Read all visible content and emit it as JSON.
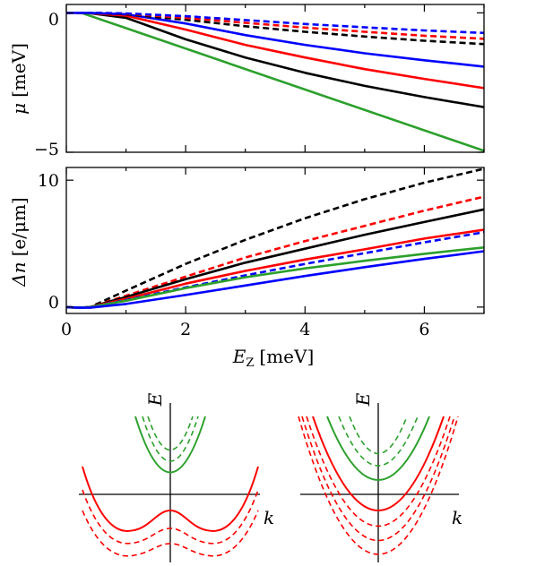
{
  "chart_data": [
    {
      "type": "line",
      "ylabel_symbol": "μ",
      "ylabel_unit": "[meV]",
      "xlim": [
        0,
        7
      ],
      "ylim": [
        -5,
        0.3
      ],
      "yticks": [
        0,
        -5
      ],
      "ytick_labels": [
        "0",
        "−5"
      ],
      "series": [
        {
          "color": "#2ca02c",
          "dash": false,
          "x": [
            0.25,
            7
          ],
          "y": [
            0,
            -4.95
          ]
        },
        {
          "color": "#000000",
          "dash": false,
          "x": [
            0,
            0.35,
            1,
            2,
            3,
            4,
            5,
            6,
            7
          ],
          "y": [
            0,
            0,
            -0.18,
            -0.95,
            -1.6,
            -2.15,
            -2.62,
            -3.02,
            -3.38
          ]
        },
        {
          "color": "#ff0000",
          "dash": false,
          "x": [
            0,
            0.35,
            1,
            2,
            3,
            4,
            5,
            6,
            7
          ],
          "y": [
            0,
            0,
            -0.1,
            -0.6,
            -1.15,
            -1.6,
            -2.02,
            -2.37,
            -2.7
          ]
        },
        {
          "color": "#0000ff",
          "dash": false,
          "x": [
            0,
            0.35,
            1,
            2,
            3,
            4,
            5,
            6,
            7
          ],
          "y": [
            0,
            0,
            -0.05,
            -0.38,
            -0.8,
            -1.15,
            -1.45,
            -1.7,
            -1.93
          ]
        },
        {
          "color": "#000000",
          "dash": true,
          "x": [
            0,
            0.5,
            1,
            2,
            3,
            4,
            5,
            6,
            7
          ],
          "y": [
            0,
            0,
            -0.05,
            -0.25,
            -0.48,
            -0.68,
            -0.85,
            -1.0,
            -1.12
          ]
        },
        {
          "color": "#ff0000",
          "dash": true,
          "x": [
            0,
            0.5,
            1,
            2,
            3,
            4,
            5,
            6,
            7
          ],
          "y": [
            0,
            0,
            -0.03,
            -0.18,
            -0.36,
            -0.53,
            -0.68,
            -0.82,
            -0.93
          ]
        },
        {
          "color": "#0000ff",
          "dash": true,
          "x": [
            0,
            0.5,
            1,
            2,
            3,
            4,
            5,
            6,
            7
          ],
          "y": [
            0,
            0,
            -0.02,
            -0.12,
            -0.26,
            -0.4,
            -0.52,
            -0.63,
            -0.72
          ]
        }
      ]
    },
    {
      "type": "line",
      "ylabel_symbol": "Δn",
      "ylabel_unit": "[e/μm]",
      "xlabel_symbol": "E",
      "xlabel_sub": "Z",
      "xlabel_unit": "[meV]",
      "xlim": [
        0,
        7
      ],
      "ylim": [
        -0.5,
        11
      ],
      "xticks": [
        0,
        2,
        4,
        6
      ],
      "xtick_labels": [
        "0",
        "2",
        "4",
        "6"
      ],
      "yticks": [
        0,
        10
      ],
      "ytick_labels": [
        "0",
        "10"
      ],
      "series": [
        {
          "color": "#000000",
          "dash": true,
          "x": [
            0,
            0.2,
            0.4,
            1,
            2,
            3,
            4,
            5,
            6,
            7
          ],
          "y": [
            0,
            -0.05,
            0,
            1.3,
            3.4,
            5.3,
            7.0,
            8.5,
            9.8,
            10.9
          ]
        },
        {
          "color": "#ff0000",
          "dash": true,
          "x": [
            0,
            0.2,
            0.4,
            1,
            2,
            3,
            4,
            5,
            6,
            7
          ],
          "y": [
            0,
            -0.05,
            0,
            0.9,
            2.4,
            3.9,
            5.2,
            6.4,
            7.6,
            8.7
          ]
        },
        {
          "color": "#000000",
          "dash": false,
          "x": [
            0,
            0.2,
            0.4,
            1,
            2,
            3,
            4,
            5,
            6,
            7
          ],
          "y": [
            0,
            -0.05,
            0,
            0.8,
            2.2,
            3.5,
            4.6,
            5.7,
            6.7,
            7.7
          ]
        },
        {
          "color": "#ff0000",
          "dash": false,
          "x": [
            0,
            0.2,
            0.4,
            1,
            2,
            3,
            4,
            5,
            6,
            7
          ],
          "y": [
            0,
            -0.05,
            0,
            0.65,
            1.85,
            2.85,
            3.75,
            4.55,
            5.4,
            6.1
          ]
        },
        {
          "color": "#0000ff",
          "dash": true,
          "x": [
            0,
            0.2,
            0.4,
            1,
            2,
            3,
            4,
            5,
            6,
            7
          ],
          "y": [
            0,
            -0.05,
            0,
            0.55,
            1.55,
            2.5,
            3.4,
            4.25,
            5.1,
            5.9
          ]
        },
        {
          "color": "#2ca02c",
          "dash": false,
          "x": [
            0,
            0.2,
            0.4,
            1,
            2,
            3,
            4,
            5,
            6,
            7
          ],
          "y": [
            0,
            -0.05,
            0,
            0.5,
            1.5,
            2.35,
            3.05,
            3.65,
            4.2,
            4.7
          ]
        },
        {
          "color": "#0000ff",
          "dash": false,
          "x": [
            0,
            0.2,
            0.4,
            1,
            2,
            3,
            4,
            5,
            6,
            7
          ],
          "y": [
            0,
            -0.05,
            -0.05,
            0.25,
            0.95,
            1.7,
            2.45,
            3.15,
            3.8,
            4.4
          ]
        }
      ]
    }
  ],
  "insets": {
    "left": {
      "e_label": "E",
      "k_label": "k"
    },
    "right": {
      "e_label": "E",
      "k_label": "k"
    }
  },
  "colors": {
    "green": "#2ca02c",
    "red": "#ff0000",
    "blue": "#0000ff",
    "black": "#000000"
  }
}
